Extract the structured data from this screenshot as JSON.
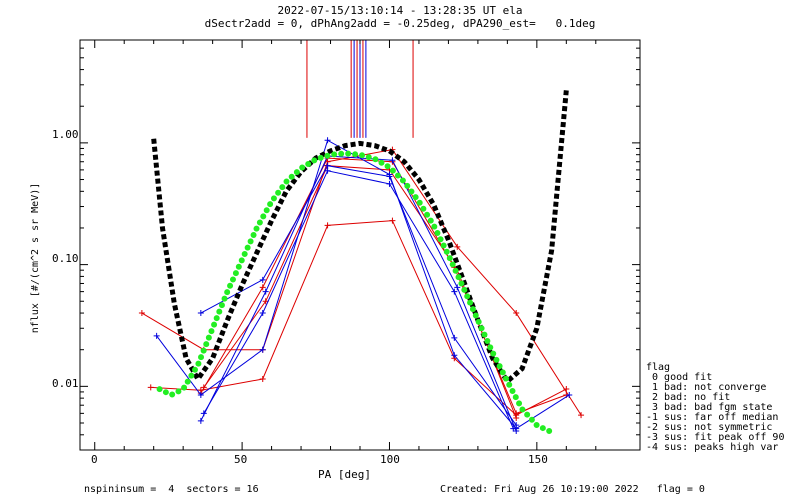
{
  "chart_data": {
    "type": "scatter",
    "title": "2022-07-15/13:10:14 - 13:28:35 UT ela",
    "subtitle": "dSectr2add = 0, dPhAng2add = -0.25deg, dPA290_est=   0.1deg",
    "xlabel": "PA [deg]",
    "ylabel": "nflux [#/(cm^2 s sr MeV)]",
    "xlim": [
      -5,
      185
    ],
    "ylim": [
      0.003,
      7
    ],
    "yscale": "log",
    "x_ticks": [
      "0",
      "50",
      "100",
      "150"
    ],
    "x_tick_values": [
      0,
      50,
      100,
      150
    ],
    "y_ticks": [
      "0.01",
      "0.10",
      "1.00"
    ],
    "y_tick_values": [
      0.01,
      0.1,
      1.0
    ],
    "vertical_markers": [
      {
        "x": 72,
        "color": "#dd0000",
        "ymin": 1.1,
        "ymax": 7
      },
      {
        "x": 87,
        "color": "#dd0000",
        "ymin": 1.1,
        "ymax": 7
      },
      {
        "x": 88,
        "color": "#0000dd",
        "ymin": 1.1,
        "ymax": 7
      },
      {
        "x": 89,
        "color": "#dd0000",
        "ymin": 1.1,
        "ymax": 7
      },
      {
        "x": 90,
        "color": "#0000dd",
        "ymin": 1.1,
        "ymax": 7
      },
      {
        "x": 91,
        "color": "#dd0000",
        "ymin": 1.1,
        "ymax": 7
      },
      {
        "x": 92,
        "color": "#0000dd",
        "ymin": 1.1,
        "ymax": 7
      },
      {
        "x": 108,
        "color": "#dd0000",
        "ymin": 1.1,
        "ymax": 7
      }
    ],
    "series": [
      {
        "name": "red sector 1",
        "color": "#dd0000",
        "x": [
          16,
          37,
          57,
          79,
          101,
          123,
          143,
          165
        ],
        "y": [
          0.04,
          0.02,
          0.02,
          0.7,
          0.88,
          0.14,
          0.04,
          0.0058
        ]
      },
      {
        "name": "red sector 2",
        "color": "#dd0000",
        "x": [
          19,
          36,
          57,
          79,
          101,
          122,
          143,
          160
        ],
        "y": [
          0.0098,
          0.0093,
          0.0115,
          0.21,
          0.23,
          0.017,
          0.0058,
          0.0095
        ]
      },
      {
        "name": "red sector 3",
        "color": "#dd0000",
        "x": [
          36,
          57,
          79,
          101,
          122,
          143,
          160
        ],
        "y": [
          0.0088,
          0.065,
          0.75,
          0.7,
          0.095,
          0.006,
          0.0085
        ]
      },
      {
        "name": "red sector 4",
        "color": "#dd0000",
        "x": [
          37,
          58,
          79,
          100,
          123,
          143
        ],
        "y": [
          0.0098,
          0.05,
          0.65,
          0.6,
          0.09,
          0.0055
        ]
      },
      {
        "name": "blue sector 1",
        "color": "#0000dd",
        "x": [
          21,
          36,
          57,
          79,
          100,
          122,
          143,
          161
        ],
        "y": [
          0.026,
          0.0085,
          0.02,
          1.05,
          0.55,
          0.018,
          0.0045,
          0.0085
        ]
      },
      {
        "name": "blue sector 2",
        "color": "#0000dd",
        "x": [
          36,
          57,
          79,
          100,
          122,
          143
        ],
        "y": [
          0.04,
          0.075,
          0.65,
          0.53,
          0.025,
          0.0048
        ]
      },
      {
        "name": "blue sector 3",
        "color": "#0000dd",
        "x": [
          36,
          58,
          79,
          101,
          123,
          143
        ],
        "y": [
          0.0052,
          0.06,
          0.78,
          0.72,
          0.065,
          0.0043
        ]
      },
      {
        "name": "blue sector 4",
        "color": "#0000dd",
        "x": [
          37,
          57,
          79,
          100,
          122,
          142
        ],
        "y": [
          0.006,
          0.04,
          0.59,
          0.46,
          0.06,
          0.0045
        ]
      }
    ],
    "fits": [
      {
        "name": "black fit",
        "color": "#000000",
        "style": "dashed-thick",
        "x": [
          20,
          23,
          27,
          31,
          35,
          40,
          45,
          50,
          55,
          60,
          65,
          70,
          75,
          80,
          85,
          90,
          95,
          100,
          105,
          110,
          115,
          120,
          125,
          130,
          135,
          140,
          145,
          150,
          155,
          158,
          160
        ],
        "y": [
          1.08,
          0.2,
          0.048,
          0.017,
          0.0115,
          0.017,
          0.035,
          0.068,
          0.125,
          0.23,
          0.4,
          0.58,
          0.75,
          0.86,
          0.95,
          0.99,
          0.95,
          0.86,
          0.7,
          0.5,
          0.31,
          0.16,
          0.075,
          0.035,
          0.017,
          0.011,
          0.014,
          0.03,
          0.13,
          0.8,
          2.7
        ]
      },
      {
        "name": "green fit",
        "color": "#22ee22",
        "style": "dotted-thick",
        "x": [
          22,
          26,
          30,
          35,
          40,
          45,
          50,
          55,
          60,
          65,
          70,
          75,
          80,
          85,
          90,
          95,
          100,
          105,
          110,
          115,
          120,
          125,
          130,
          135,
          140,
          145,
          150,
          155
        ],
        "y": [
          0.0095,
          0.0085,
          0.0095,
          0.015,
          0.03,
          0.06,
          0.11,
          0.2,
          0.33,
          0.48,
          0.62,
          0.73,
          0.8,
          0.82,
          0.8,
          0.74,
          0.63,
          0.48,
          0.33,
          0.21,
          0.12,
          0.065,
          0.035,
          0.019,
          0.011,
          0.0065,
          0.0048,
          0.0042
        ]
      }
    ]
  },
  "legend": {
    "title": "flag",
    "items": [
      " 0 good fit",
      " 1 bad: not converge",
      " 2 bad: no fit",
      " 3 bad: bad fgm state",
      "-1 sus: far off median",
      "-2 sus: not symmetric",
      "-3 sus: fit peak off 90",
      "-4 sus: peaks high var"
    ]
  },
  "footer": {
    "left": "nspininsum =  4  sectors = 16",
    "right": "Created: Fri Aug 26 10:19:00 2022   flag = 0"
  }
}
